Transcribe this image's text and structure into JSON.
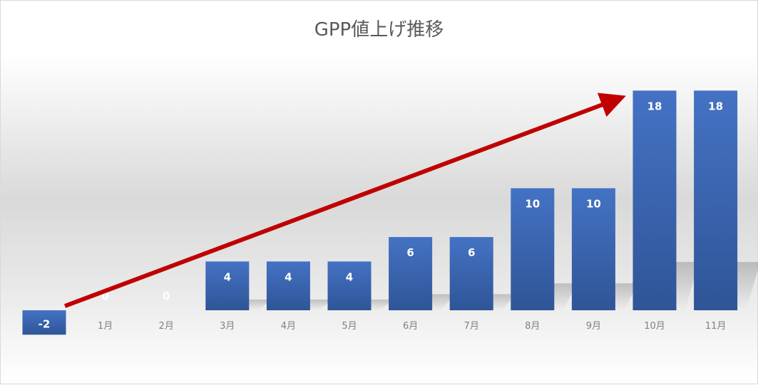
{
  "chart_data": {
    "type": "bar",
    "title": "GPP値上げ推移",
    "categories": [
      "",
      "1月",
      "2月",
      "3月",
      "4月",
      "5月",
      "6月",
      "7月",
      "8月",
      "9月",
      "10月",
      "11月"
    ],
    "values": [
      -2,
      0,
      0,
      4,
      4,
      4,
      6,
      6,
      10,
      10,
      18,
      18
    ],
    "data_labels": [
      "-2",
      "0",
      "0",
      "4",
      "4",
      "4",
      "6",
      "6",
      "10",
      "10",
      "18",
      "18"
    ],
    "ylim": [
      -2,
      18
    ],
    "grid": false,
    "legend": "none",
    "xlabel": "",
    "ylabel": "",
    "colors": {
      "bar_top": "#4472c4",
      "bar_bottom": "#2f5597",
      "arrow": "#c00000",
      "label": "#ffffff",
      "tick": "#808080"
    },
    "annotation": "trend-arrow"
  }
}
